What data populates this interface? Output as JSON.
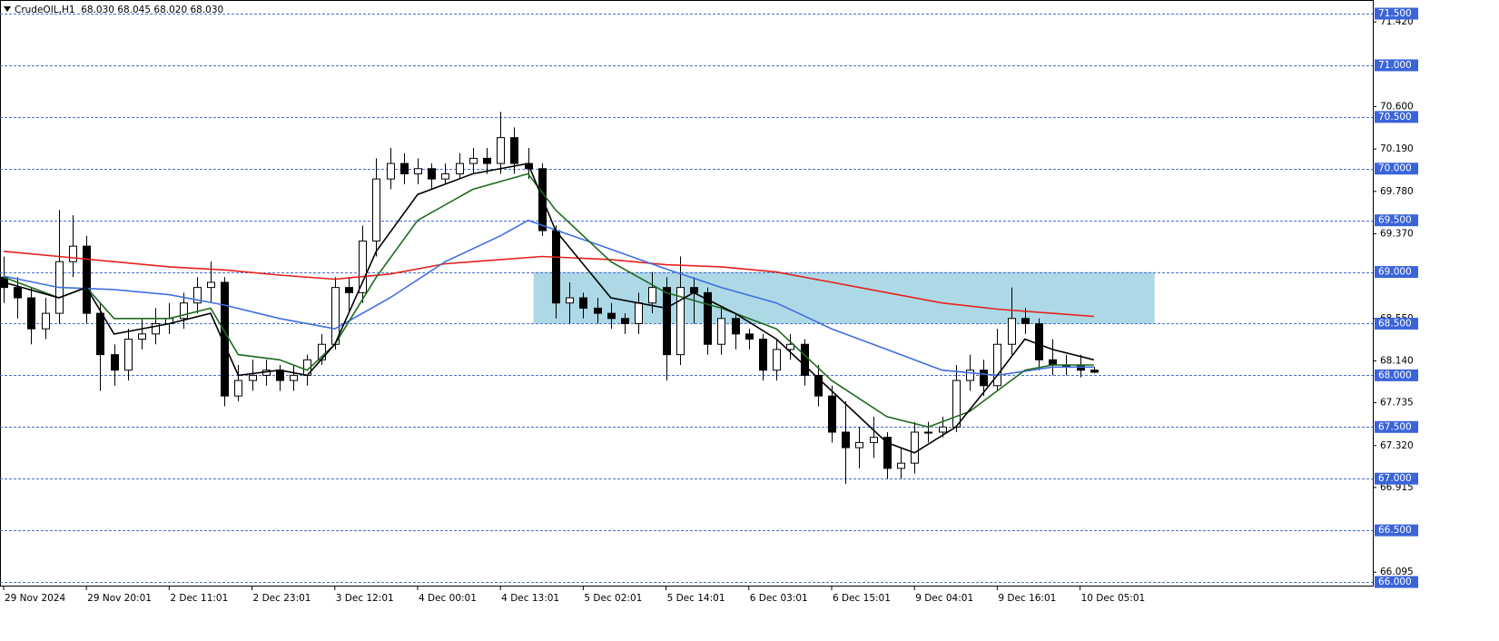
{
  "header": "CrudeOIL,H1  68.030 68.045 68.020 68.030",
  "chart_data": {
    "type": "candlestick",
    "categories": [
      "29 Nov 2024",
      null,
      null,
      null,
      null,
      null,
      "29 Nov 20:01",
      null,
      null,
      null,
      null,
      null,
      "2 Dec 11:01",
      null,
      null,
      null,
      null,
      null,
      "2 Dec 23:01",
      null,
      null,
      null,
      null,
      null,
      "3 Dec 12:01",
      null,
      null,
      null,
      null,
      null,
      "4 Dec 00:01",
      null,
      null,
      null,
      null,
      null,
      "4 Dec 13:01",
      null,
      null,
      null,
      null,
      null,
      "5 Dec 02:01",
      null,
      null,
      null,
      null,
      null,
      "5 Dec 14:01",
      null,
      null,
      null,
      null,
      null,
      "6 Dec 03:01",
      null,
      null,
      null,
      null,
      null,
      "6 Dec 15:01",
      null,
      null,
      null,
      null,
      null,
      "9 Dec 04:01",
      null,
      null,
      null,
      null,
      null,
      "9 Dec 16:01",
      null,
      null,
      null,
      null,
      null,
      "10 Dec 05:01",
      null
    ],
    "xlim": [
      -0.26,
      99.21
    ],
    "ylim": [
      65.965,
      71.632
    ],
    "yticks": [
      {
        "value": 71.5,
        "label": "71.500"
      },
      {
        "value": 71.0,
        "label": "71.000"
      },
      {
        "value": 70.5,
        "label": "70.500"
      },
      {
        "value": 70.0,
        "label": "70.000"
      },
      {
        "value": 69.5,
        "label": "69.500"
      },
      {
        "value": 69.0,
        "label": "69.000"
      },
      {
        "value": 68.5,
        "label": "68.500"
      },
      {
        "value": 68.0,
        "label": "68.000"
      },
      {
        "value": 67.5,
        "label": "67.500"
      },
      {
        "value": 67.0,
        "label": "67.000"
      },
      {
        "value": 66.5,
        "label": "66.500"
      },
      {
        "value": 66.0,
        "label": "66.000"
      }
    ],
    "price_labels": [
      {
        "value": 71.42,
        "label": "71.420"
      },
      {
        "value": 70.6,
        "label": "70.600"
      },
      {
        "value": 70.19,
        "label": "70.190"
      },
      {
        "value": 69.78,
        "label": "69.780"
      },
      {
        "value": 69.37,
        "label": "69.370"
      },
      {
        "value": 68.55,
        "label": "68.550"
      },
      {
        "value": 68.14,
        "label": "68.140"
      },
      {
        "value": 67.735,
        "label": "67.735"
      },
      {
        "value": 67.32,
        "label": "67.320"
      },
      {
        "value": 66.915,
        "label": "66.915"
      },
      {
        "value": 66.095,
        "label": "66.095"
      }
    ],
    "grid": true,
    "grid_color": "#4a6fd0",
    "label_color": "#3b64d9",
    "up_color": "#ffffff",
    "down_color": "#000000",
    "open": [
      68.95,
      68.85,
      68.75,
      68.45,
      68.6,
      69.1,
      69.25,
      68.6,
      68.2,
      68.05,
      68.35,
      68.4,
      68.5,
      68.55,
      68.7,
      68.85,
      68.9,
      67.8,
      67.95,
      68.0,
      68.05,
      67.95,
      68.0,
      68.15,
      68.3,
      68.85,
      68.8,
      69.3,
      69.9,
      70.05,
      69.95,
      70.0,
      69.9,
      69.95,
      70.05,
      70.1,
      70.05,
      70.3,
      70.05,
      70.0,
      69.4,
      68.7,
      68.75,
      68.65,
      68.6,
      68.55,
      68.5,
      68.7,
      68.85,
      68.2,
      68.85,
      68.8,
      68.3,
      68.55,
      68.4,
      68.35,
      68.05,
      68.25,
      68.3,
      68.0,
      67.8,
      67.45,
      67.3,
      67.35,
      67.4,
      67.1,
      67.15,
      67.45,
      67.45,
      67.5,
      67.95,
      68.05,
      67.9,
      68.3,
      68.55,
      68.5,
      68.15,
      68.1,
      68.1,
      68.05
    ],
    "high": [
      69.15,
      68.95,
      68.85,
      68.75,
      69.6,
      69.55,
      69.35,
      68.7,
      68.3,
      68.45,
      68.55,
      68.65,
      68.7,
      68.8,
      68.95,
      69.1,
      68.95,
      68.1,
      68.15,
      68.15,
      68.1,
      68.1,
      68.2,
      68.4,
      68.95,
      68.95,
      69.45,
      70.1,
      70.2,
      70.15,
      70.1,
      70.05,
      70.05,
      70.15,
      70.2,
      70.2,
      70.55,
      70.4,
      70.2,
      70.05,
      69.45,
      68.9,
      68.8,
      68.75,
      68.7,
      68.6,
      68.8,
      69.0,
      68.95,
      69.15,
      68.95,
      68.85,
      68.65,
      68.6,
      68.45,
      68.4,
      68.35,
      68.4,
      68.35,
      68.1,
      67.9,
      67.75,
      67.5,
      67.6,
      67.45,
      67.3,
      67.55,
      67.55,
      67.6,
      68.1,
      68.2,
      68.15,
      68.45,
      68.85,
      68.65,
      68.55,
      68.35,
      68.2,
      68.2,
      68.08
    ],
    "low": [
      68.7,
      68.55,
      68.3,
      68.35,
      68.5,
      68.95,
      68.5,
      67.85,
      67.9,
      67.95,
      68.25,
      68.3,
      68.4,
      68.45,
      68.6,
      68.7,
      67.7,
      67.75,
      67.85,
      67.9,
      67.85,
      67.85,
      67.9,
      68.1,
      68.25,
      68.6,
      68.7,
      69.15,
      69.8,
      69.85,
      69.85,
      69.8,
      69.85,
      69.9,
      69.95,
      69.95,
      69.95,
      69.95,
      69.9,
      69.35,
      68.55,
      68.5,
      68.55,
      68.5,
      68.45,
      68.4,
      68.4,
      68.6,
      67.95,
      68.1,
      68.5,
      68.2,
      68.2,
      68.25,
      68.25,
      67.95,
      67.95,
      68.15,
      67.9,
      67.7,
      67.35,
      66.95,
      67.1,
      67.2,
      67.0,
      67.0,
      67.05,
      67.35,
      67.4,
      67.45,
      67.85,
      67.8,
      67.85,
      68.2,
      68.4,
      68.05,
      68.0,
      68.0,
      67.98,
      68.02
    ],
    "close": [
      68.85,
      68.75,
      68.45,
      68.6,
      69.1,
      69.25,
      68.6,
      68.2,
      68.05,
      68.35,
      68.4,
      68.5,
      68.55,
      68.7,
      68.85,
      68.9,
      67.8,
      67.95,
      68.0,
      68.05,
      67.95,
      68.0,
      68.15,
      68.3,
      68.85,
      68.8,
      69.3,
      69.9,
      70.05,
      69.95,
      70.0,
      69.9,
      69.95,
      70.05,
      70.1,
      70.05,
      70.3,
      70.05,
      70.0,
      69.4,
      68.7,
      68.75,
      68.65,
      68.6,
      68.55,
      68.5,
      68.7,
      68.85,
      68.2,
      68.85,
      68.8,
      68.3,
      68.55,
      68.4,
      68.35,
      68.05,
      68.25,
      68.3,
      68.0,
      67.8,
      67.45,
      67.3,
      67.35,
      67.4,
      67.1,
      67.15,
      67.45,
      67.45,
      67.5,
      67.95,
      68.05,
      67.9,
      68.3,
      68.55,
      68.5,
      68.15,
      68.1,
      68.1,
      68.05,
      68.03
    ],
    "zone": {
      "x": [
        38.4,
        83.4
      ],
      "y": [
        68.5,
        69.0
      ],
      "color": "#add8e6"
    },
    "series": [
      {
        "color": "#e8201c",
        "x": [
          0,
          4,
          8,
          12,
          16,
          20,
          24,
          28,
          32,
          36,
          39,
          44,
          48,
          52,
          56,
          60,
          64,
          68,
          72,
          76,
          79
        ],
        "values": [
          69.2,
          69.15,
          69.1,
          69.05,
          69.02,
          68.97,
          68.93,
          68.98,
          69.08,
          69.12,
          69.15,
          69.12,
          69.07,
          69.05,
          69.0,
          68.9,
          68.8,
          68.7,
          68.64,
          68.6,
          68.57
        ]
      },
      {
        "color": "#3f6fe0",
        "x": [
          0,
          4,
          8,
          12,
          16,
          20,
          24,
          28,
          32,
          36,
          38,
          44,
          48,
          52,
          56,
          60,
          64,
          68,
          72,
          76,
          79
        ],
        "values": [
          68.96,
          68.85,
          68.83,
          68.78,
          68.68,
          68.55,
          68.45,
          68.75,
          69.1,
          69.35,
          69.5,
          69.22,
          69.03,
          68.85,
          68.7,
          68.45,
          68.25,
          68.05,
          68.0,
          68.08,
          68.08
        ]
      },
      {
        "color": "#1e6b1e",
        "x": [
          0,
          4,
          6,
          8,
          12,
          15,
          17,
          20,
          22,
          24,
          27,
          30,
          34,
          38,
          40,
          44,
          48,
          52,
          56,
          60,
          64,
          67,
          70,
          74,
          76,
          79
        ],
        "values": [
          68.95,
          68.75,
          68.85,
          68.55,
          68.55,
          68.65,
          68.2,
          68.15,
          68.05,
          68.3,
          68.95,
          69.5,
          69.8,
          69.95,
          69.6,
          69.1,
          68.8,
          68.65,
          68.45,
          67.95,
          67.6,
          67.5,
          67.65,
          68.05,
          68.1,
          68.1
        ]
      },
      {
        "color": "#000000",
        "x": [
          0,
          4,
          6,
          8,
          12,
          15,
          17,
          20,
          22,
          24,
          27,
          30,
          34,
          38,
          40,
          44,
          48,
          50,
          53,
          56,
          60,
          64,
          66,
          69,
          72,
          74,
          76,
          79
        ],
        "values": [
          68.9,
          68.75,
          68.85,
          68.4,
          68.5,
          68.6,
          68.0,
          68.05,
          68.0,
          68.3,
          69.2,
          69.75,
          69.95,
          70.05,
          69.4,
          68.75,
          68.65,
          68.8,
          68.6,
          68.35,
          67.85,
          67.35,
          67.25,
          67.5,
          68.0,
          68.35,
          68.25,
          68.15
        ]
      }
    ]
  }
}
